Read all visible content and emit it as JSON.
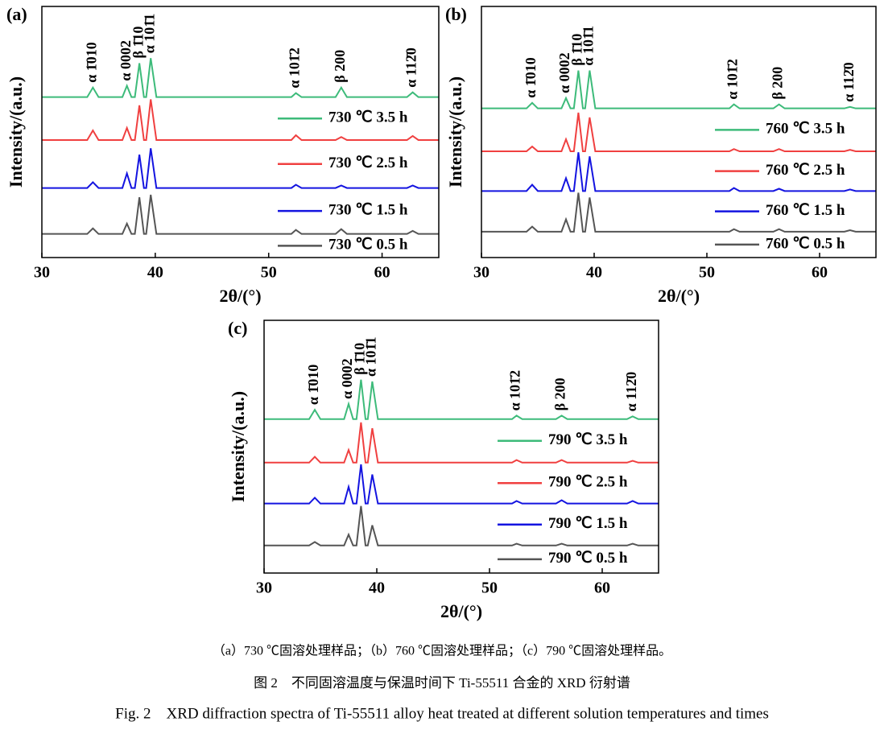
{
  "chart_data": [
    {
      "type": "line",
      "panel_label": "(a)",
      "xlabel": "2θ/(°)",
      "ylabel": "Intensity/(a.u.)",
      "x": [
        30,
        34.0,
        34.5,
        35.0,
        37.1,
        37.5,
        37.9,
        38.2,
        38.6,
        39.0,
        39.2,
        39.6,
        40.1,
        45,
        52.0,
        52.4,
        52.9,
        55.9,
        56.4,
        56.9,
        62.2,
        62.7,
        63.2,
        65
      ],
      "xlim": [
        30,
        65
      ],
      "xticks": [
        30,
        40,
        50,
        60
      ],
      "ylim": [
        0,
        100
      ],
      "series": [
        {
          "name": "730 ℃ 3.5 h",
          "color": "#3dbb7a",
          "values": [
            63.9,
            63.9,
            67.7,
            63.9,
            63.9,
            68.4,
            63.9,
            63.9,
            77.4,
            63.9,
            63.9,
            79.4,
            63.9,
            63.9,
            63.9,
            65.5,
            63.9,
            63.9,
            67.7,
            63.9,
            63.9,
            65.8,
            63.9,
            63.9
          ]
        },
        {
          "name": "730 ℃ 2.5 h",
          "color": "#f04040",
          "values": [
            46.8,
            46.8,
            50.6,
            46.8,
            46.8,
            51.6,
            46.8,
            46.8,
            60.6,
            46.8,
            46.8,
            63,
            46.8,
            46.8,
            46.8,
            48.7,
            46.8,
            46.8,
            48,
            46.8,
            46.8,
            48.4,
            46.8,
            46.8
          ]
        },
        {
          "name": "730 ℃ 1.5 h",
          "color": "#1414e0",
          "values": [
            27.7,
            27.7,
            30,
            27.7,
            27.7,
            33.5,
            27.7,
            27.7,
            41,
            27.7,
            27.7,
            43.5,
            27.7,
            27.7,
            27.7,
            29,
            27.7,
            27.7,
            28.7,
            27.7,
            27.7,
            28.7,
            27.7,
            27.7
          ]
        },
        {
          "name": "730 ℃ 0.5 h",
          "color": "#555555",
          "values": [
            9.4,
            9.4,
            11.6,
            9.4,
            9.4,
            13.5,
            9.4,
            9.4,
            24,
            9.4,
            9.4,
            25,
            9.4,
            9.4,
            9.4,
            11,
            9.4,
            9.4,
            11.3,
            9.4,
            9.4,
            10.6,
            9.4,
            9.4
          ]
        }
      ],
      "annotations": [
        {
          "text": "α 1̄010",
          "x": 34.5
        },
        {
          "text": "α 0002",
          "x": 37.5
        },
        {
          "text": "β 1̄10",
          "x": 38.6
        },
        {
          "text": "α 101̄1",
          "x": 39.6
        },
        {
          "text": "α 101̄2",
          "x": 52.4
        },
        {
          "text": "β 200",
          "x": 56.4
        },
        {
          "text": "α 112̄0",
          "x": 62.7
        }
      ]
    },
    {
      "type": "line",
      "panel_label": "(b)",
      "xlabel": "2θ/(°)",
      "ylabel": "Intensity/(a.u.)",
      "x": [
        30,
        34.0,
        34.5,
        35.0,
        37.1,
        37.5,
        37.9,
        38.2,
        38.6,
        39.0,
        39.2,
        39.6,
        40.1,
        45,
        52.0,
        52.4,
        52.9,
        55.9,
        56.4,
        56.9,
        62.2,
        62.7,
        63.2,
        65
      ],
      "xlim": [
        30,
        65
      ],
      "xticks": [
        30,
        40,
        50,
        60
      ],
      "ylim": [
        0,
        100
      ],
      "series": [
        {
          "name": "760 ℃ 3.5 h",
          "color": "#3dbb7a",
          "values": [
            59.4,
            59.4,
            61.6,
            59.4,
            59.4,
            63.5,
            59.4,
            59.4,
            74.5,
            59.4,
            59.4,
            74.5,
            59.4,
            59.4,
            59.4,
            61,
            59.4,
            59.4,
            61,
            59.4,
            59.4,
            60,
            59.4,
            59.4
          ]
        },
        {
          "name": "760 ℃ 2.5 h",
          "color": "#f04040",
          "values": [
            42.3,
            42.3,
            44.2,
            42.3,
            42.3,
            47.1,
            42.3,
            42.3,
            57.7,
            42.3,
            42.3,
            55.8,
            42.3,
            42.3,
            42.3,
            43.2,
            42.3,
            42.3,
            43.2,
            42.3,
            42.3,
            42.9,
            42.3,
            42.3
          ]
        },
        {
          "name": "760 ℃ 1.5 h",
          "color": "#1414e0",
          "values": [
            26.5,
            26.5,
            29,
            26.5,
            26.5,
            31.6,
            26.5,
            26.5,
            41.9,
            26.5,
            26.5,
            40.3,
            26.5,
            26.5,
            26.5,
            27.7,
            26.5,
            26.5,
            27.4,
            26.5,
            26.5,
            27.1,
            26.5,
            26.5
          ]
        },
        {
          "name": "760 ℃ 0.5 h",
          "color": "#555555",
          "values": [
            10.3,
            10.3,
            12.3,
            10.3,
            10.3,
            15.2,
            10.3,
            10.3,
            25.8,
            10.3,
            10.3,
            23.9,
            10.3,
            10.3,
            10.3,
            11.3,
            10.3,
            10.3,
            11.3,
            10.3,
            10.3,
            10.9,
            10.3,
            10.3
          ]
        }
      ],
      "annotations": [
        {
          "text": "α 1̄010",
          "x": 34.5
        },
        {
          "text": "α 0002",
          "x": 37.5
        },
        {
          "text": "β 1̄10",
          "x": 38.6
        },
        {
          "text": "α 101̄1",
          "x": 39.6
        },
        {
          "text": "α 101̄2",
          "x": 52.4
        },
        {
          "text": "β 200",
          "x": 56.4
        },
        {
          "text": "α 112̄0",
          "x": 62.7
        }
      ]
    },
    {
      "type": "line",
      "panel_label": "(c)",
      "xlabel": "2θ/(°)",
      "ylabel": "Intensity/(a.u.)",
      "x": [
        30,
        34.0,
        34.5,
        35.0,
        37.1,
        37.5,
        37.9,
        38.2,
        38.6,
        39.0,
        39.2,
        39.6,
        40.1,
        45,
        52.0,
        52.4,
        52.9,
        55.9,
        56.4,
        56.9,
        62.2,
        62.7,
        63.2,
        65
      ],
      "xlim": [
        30,
        65
      ],
      "xticks": [
        30,
        40,
        50,
        60
      ],
      "ylim": [
        0,
        100
      ],
      "series": [
        {
          "name": "790 ℃ 3.5 h",
          "color": "#3dbb7a",
          "values": [
            60.9,
            60.9,
            64.6,
            60.9,
            60.9,
            66.9,
            60.9,
            60.9,
            76.5,
            60.9,
            60.9,
            75.8,
            60.9,
            60.9,
            60.9,
            62.3,
            60.9,
            60.9,
            62.3,
            60.9,
            60.9,
            62,
            60.9,
            60.9
          ]
        },
        {
          "name": "790 ℃ 2.5 h",
          "color": "#f04040",
          "values": [
            43.7,
            43.7,
            46,
            43.7,
            43.7,
            48.7,
            43.7,
            43.7,
            59.6,
            43.7,
            43.7,
            57.3,
            43.7,
            43.7,
            43.7,
            44.7,
            43.7,
            43.7,
            44.7,
            43.7,
            43.7,
            44.4,
            43.7,
            43.7
          ]
        },
        {
          "name": "790 ℃ 1.5 h",
          "color": "#1414e0",
          "values": [
            27.5,
            27.5,
            29.8,
            27.5,
            27.5,
            34.1,
            27.5,
            27.5,
            43,
            27.5,
            27.5,
            39,
            27.5,
            27.5,
            27.5,
            28.5,
            27.5,
            27.5,
            28.8,
            27.5,
            27.5,
            28.5,
            27.5,
            27.5
          ]
        },
        {
          "name": "790 ℃ 0.5 h",
          "color": "#555555",
          "values": [
            10.9,
            10.9,
            12.3,
            10.9,
            10.9,
            15.2,
            10.9,
            10.9,
            26.5,
            10.9,
            10.9,
            18.9,
            10.9,
            10.9,
            10.9,
            11.6,
            10.9,
            10.9,
            11.6,
            10.9,
            10.9,
            11.6,
            10.9,
            10.9
          ]
        }
      ],
      "annotations": [
        {
          "text": "α 1̄010",
          "x": 34.5
        },
        {
          "text": "α 0002",
          "x": 37.5
        },
        {
          "text": "β 1̄10",
          "x": 38.6
        },
        {
          "text": "α 101̄1",
          "x": 39.6
        },
        {
          "text": "α 101̄2",
          "x": 52.4
        },
        {
          "text": "β 200",
          "x": 56.4
        },
        {
          "text": "α 112̄0",
          "x": 62.7
        }
      ]
    }
  ],
  "captions": {
    "sub": "（a）730 ℃固溶处理样品；（b）760 ℃固溶处理样品；（c）790 ℃固溶处理样品。",
    "cn": "图 2　不同固溶温度与保温时间下 Ti-55511 合金的 XRD 衍射谱",
    "en": "Fig. 2　XRD diffraction spectra of Ti-55511 alloy heat treated at different solution temperatures and times"
  }
}
